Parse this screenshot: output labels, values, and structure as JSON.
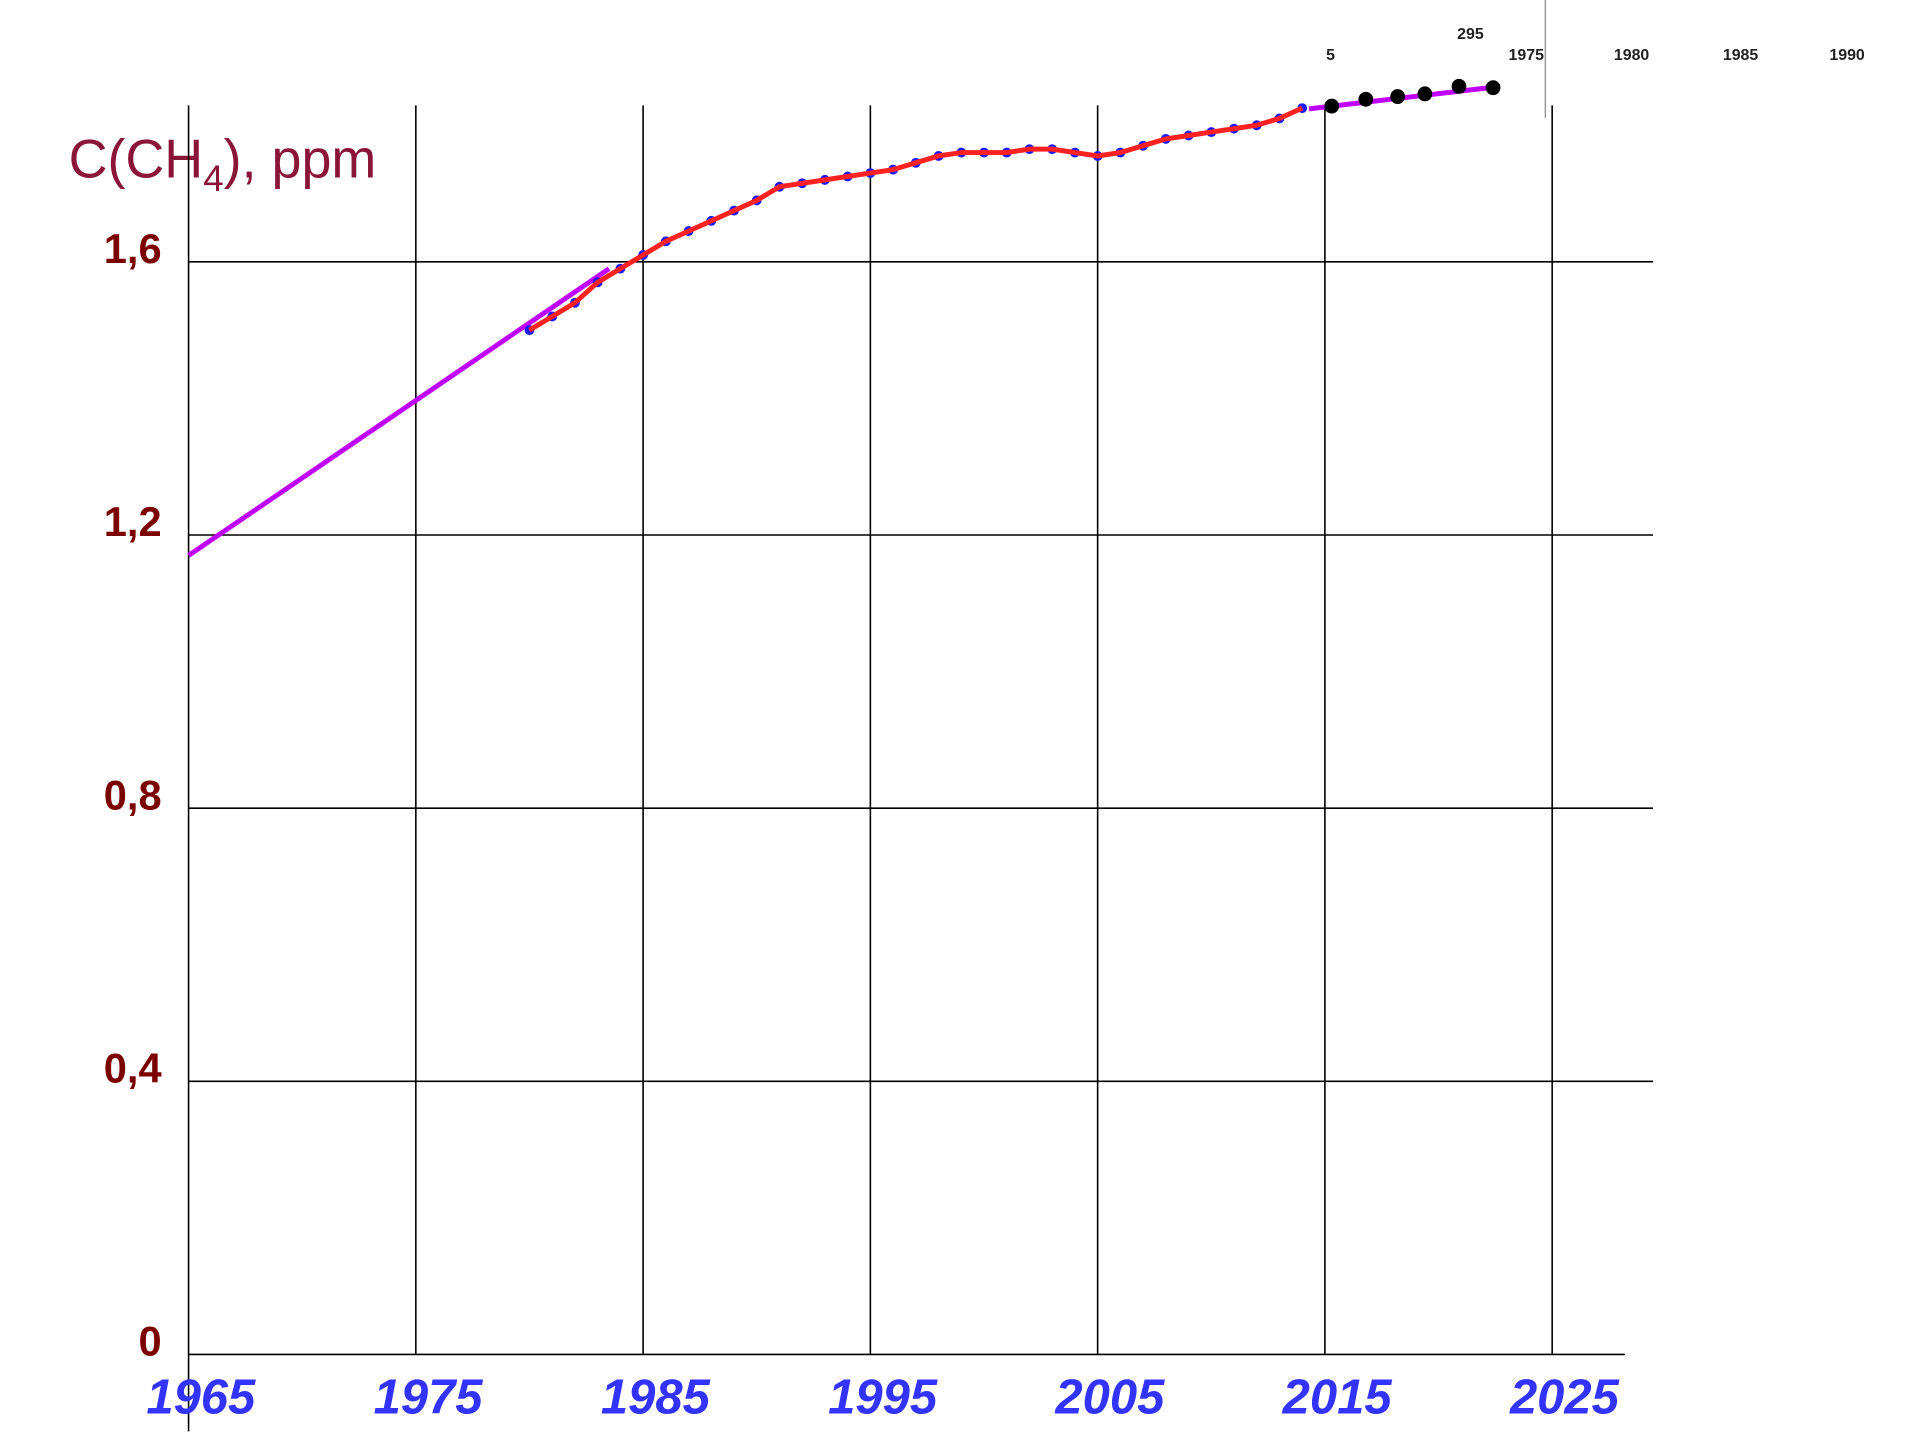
{
  "chart_data": {
    "type": "line",
    "ylabel": [
      "C(CH",
      "4",
      "), ppm"
    ],
    "xlim": [
      1965,
      2028.2
    ],
    "ylim": [
      0,
      1.86
    ],
    "xticks": [
      1965,
      1975,
      1985,
      1995,
      2005,
      2015,
      2025
    ],
    "yticks": [
      0,
      {
        "value": 0.4,
        "label": "0,4"
      },
      {
        "value": 0.8,
        "label": "0,8"
      },
      {
        "value": 1.2,
        "label": "1,2"
      },
      {
        "value": 1.6,
        "label": "1,6"
      }
    ],
    "grid": true,
    "series": [
      {
        "style": "line",
        "color": "#c000ff",
        "x": [
          1965,
          1983.5,
          1999,
          2014.3,
          2022.5
        ],
        "values": [
          1.17,
          1.59,
          null,
          1.824,
          1.856
        ]
      },
      {
        "style": "dots",
        "color": "#1a1aff",
        "x": [
          1980,
          1981,
          1982,
          1983,
          1984,
          1985,
          1986,
          1987,
          1988,
          1989,
          1990,
          1991,
          1992,
          1993,
          1994,
          1995,
          1996,
          1997,
          1998,
          1999,
          2000,
          2001,
          2002,
          2003,
          2004,
          2005,
          2006,
          2007,
          2008,
          2009,
          2010,
          2011,
          2012,
          2013,
          2014
        ],
        "values": [
          1.5,
          1.52,
          1.54,
          1.57,
          1.59,
          1.61,
          1.63,
          1.645,
          1.66,
          1.675,
          1.69,
          1.71,
          1.715,
          1.72,
          1.725,
          1.73,
          1.735,
          1.745,
          1.755,
          1.76,
          1.76,
          1.76,
          1.765,
          1.765,
          1.76,
          1.755,
          1.76,
          1.77,
          1.78,
          1.785,
          1.79,
          1.795,
          1.8,
          1.81,
          1.825
        ]
      },
      {
        "style": "line",
        "color": "#ff2020",
        "x": [
          1980,
          1981,
          1982,
          1983,
          1984,
          1985,
          1986,
          1987,
          1988,
          1989,
          1990,
          1991,
          1992,
          1993,
          1994,
          1995,
          1996,
          1997,
          1998,
          1999,
          2000,
          2001,
          2002,
          2003,
          2004,
          2005,
          2006,
          2007,
          2008,
          2009,
          2010,
          2011,
          2012,
          2013,
          2014
        ],
        "values": [
          1.5,
          1.52,
          1.54,
          1.57,
          1.59,
          1.61,
          1.63,
          1.645,
          1.66,
          1.675,
          1.69,
          1.71,
          1.715,
          1.72,
          1.725,
          1.73,
          1.735,
          1.745,
          1.755,
          1.76,
          1.76,
          1.76,
          1.765,
          1.765,
          1.76,
          1.755,
          1.76,
          1.77,
          1.78,
          1.785,
          1.79,
          1.795,
          1.8,
          1.81,
          1.825
        ]
      },
      {
        "style": "dots",
        "color": "#000000",
        "x": [
          2015.3,
          2016.8,
          2018.2,
          2019.4,
          2020.9,
          2022.4
        ],
        "values": [
          1.828,
          1.838,
          1.842,
          1.846,
          1.857,
          1.855
        ]
      }
    ],
    "inset_labels": [
      "295",
      "5",
      "1975",
      "1980",
      "1985",
      "1990"
    ]
  }
}
